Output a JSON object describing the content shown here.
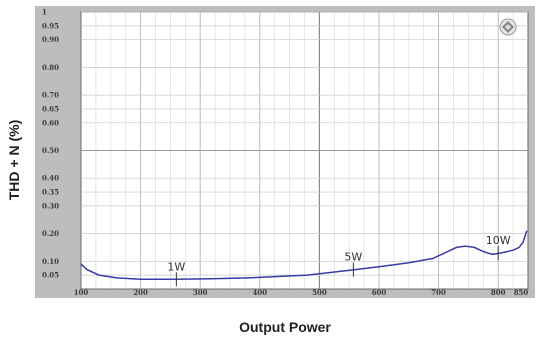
{
  "chart_data": {
    "type": "line",
    "title": "",
    "xlabel": "Output Power",
    "ylabel": "THD + N (%)",
    "xlim": [
      100,
      850
    ],
    "ylim_labels": [
      "1",
      "0.95",
      "0.90",
      "0.80",
      "0.70",
      "0.65",
      "0.60",
      "0.50",
      "0.40",
      "0.35",
      "0.30",
      "0.20",
      "0.10",
      "0.05"
    ],
    "ylim": [
      0,
      1
    ],
    "xticks": [
      "100",
      "200",
      "300",
      "400",
      "500",
      "600",
      "700",
      "800",
      "850"
    ],
    "yticks": [
      "1",
      "0.95",
      "0.90",
      "0.80",
      "0.70",
      "0.65",
      "0.60",
      "0.50",
      "0.40",
      "0.35",
      "0.30",
      "0.20",
      "0.10",
      "0.05"
    ],
    "grid": true,
    "series": [
      {
        "color": "#3a3aa8",
        "x": [
          100,
          110,
          130,
          160,
          200,
          260,
          320,
          380,
          430,
          480,
          520,
          560,
          600,
          650,
          690,
          710,
          730,
          745,
          760,
          775,
          790,
          805,
          815,
          825,
          835,
          842,
          848
        ],
        "y": [
          0.09,
          0.07,
          0.05,
          0.04,
          0.035,
          0.035,
          0.037,
          0.04,
          0.045,
          0.05,
          0.06,
          0.07,
          0.08,
          0.095,
          0.11,
          0.13,
          0.15,
          0.155,
          0.15,
          0.135,
          0.125,
          0.13,
          0.135,
          0.14,
          0.15,
          0.17,
          0.21
        ]
      }
    ],
    "annotations": [
      {
        "text": "1W",
        "x": 260,
        "y": 0.035
      },
      {
        "text": "5W",
        "x": 557,
        "y": 0.07
      },
      {
        "text": "10W",
        "x": 800,
        "y": 0.13
      }
    ],
    "logo_icon": "diamond-logo-icon"
  }
}
